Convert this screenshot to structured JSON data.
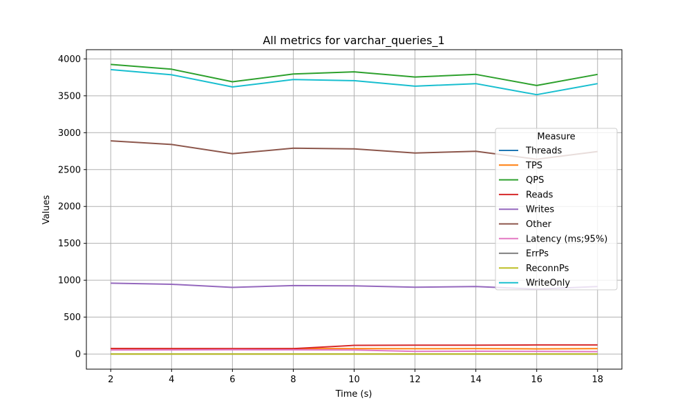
{
  "chart_data": {
    "type": "line",
    "title": "All metrics for varchar_queries_1",
    "xlabel": "Time (s)",
    "ylabel": "Values",
    "x": [
      2,
      4,
      6,
      8,
      10,
      12,
      14,
      16,
      18
    ],
    "xticks": [
      2,
      4,
      6,
      8,
      10,
      12,
      14,
      16,
      18
    ],
    "yticks": [
      0,
      500,
      1000,
      1500,
      2000,
      2500,
      3000,
      3500,
      4000
    ],
    "xlim": [
      1.2,
      18.8
    ],
    "ylim": [
      -205,
      4125
    ],
    "grid": true,
    "legend": {
      "title": "Measure",
      "placement": "center-right"
    },
    "series": [
      {
        "name": "Threads",
        "color": "#1f77b4",
        "values": [
          1,
          1,
          1,
          1,
          1,
          1,
          1,
          1,
          1
        ]
      },
      {
        "name": "TPS",
        "color": "#ff7f0e",
        "values": [
          75,
          73,
          72,
          73,
          73,
          72,
          73,
          70,
          73
        ]
      },
      {
        "name": "QPS",
        "color": "#2ca02c",
        "values": [
          3925,
          3860,
          3690,
          3795,
          3825,
          3755,
          3790,
          3640,
          3790
        ]
      },
      {
        "name": "Reads",
        "color": "#d62728",
        "values": [
          75,
          74,
          73,
          73,
          118,
          120,
          120,
          123,
          123
        ]
      },
      {
        "name": "Writes",
        "color": "#9467bd",
        "values": [
          960,
          945,
          903,
          928,
          924,
          905,
          914,
          880,
          914
        ]
      },
      {
        "name": "Other",
        "color": "#8c564b",
        "values": [
          2890,
          2840,
          2715,
          2790,
          2780,
          2725,
          2748,
          2640,
          2745
        ]
      },
      {
        "name": "Latency (ms;95%)",
        "color": "#e377c2",
        "values": [
          55,
          56,
          58,
          57,
          55,
          35,
          38,
          35,
          33
        ]
      },
      {
        "name": "ErrPs",
        "color": "#7f7f7f",
        "values": [
          0,
          0,
          0,
          0,
          0,
          0,
          0,
          0,
          0
        ]
      },
      {
        "name": "ReconnPs",
        "color": "#bcbd22",
        "values": [
          0,
          0,
          0,
          0,
          0,
          0,
          0,
          0,
          0
        ]
      },
      {
        "name": "WriteOnly",
        "color": "#17becf",
        "values": [
          3855,
          3785,
          3620,
          3720,
          3705,
          3630,
          3665,
          3515,
          3665
        ]
      }
    ]
  }
}
